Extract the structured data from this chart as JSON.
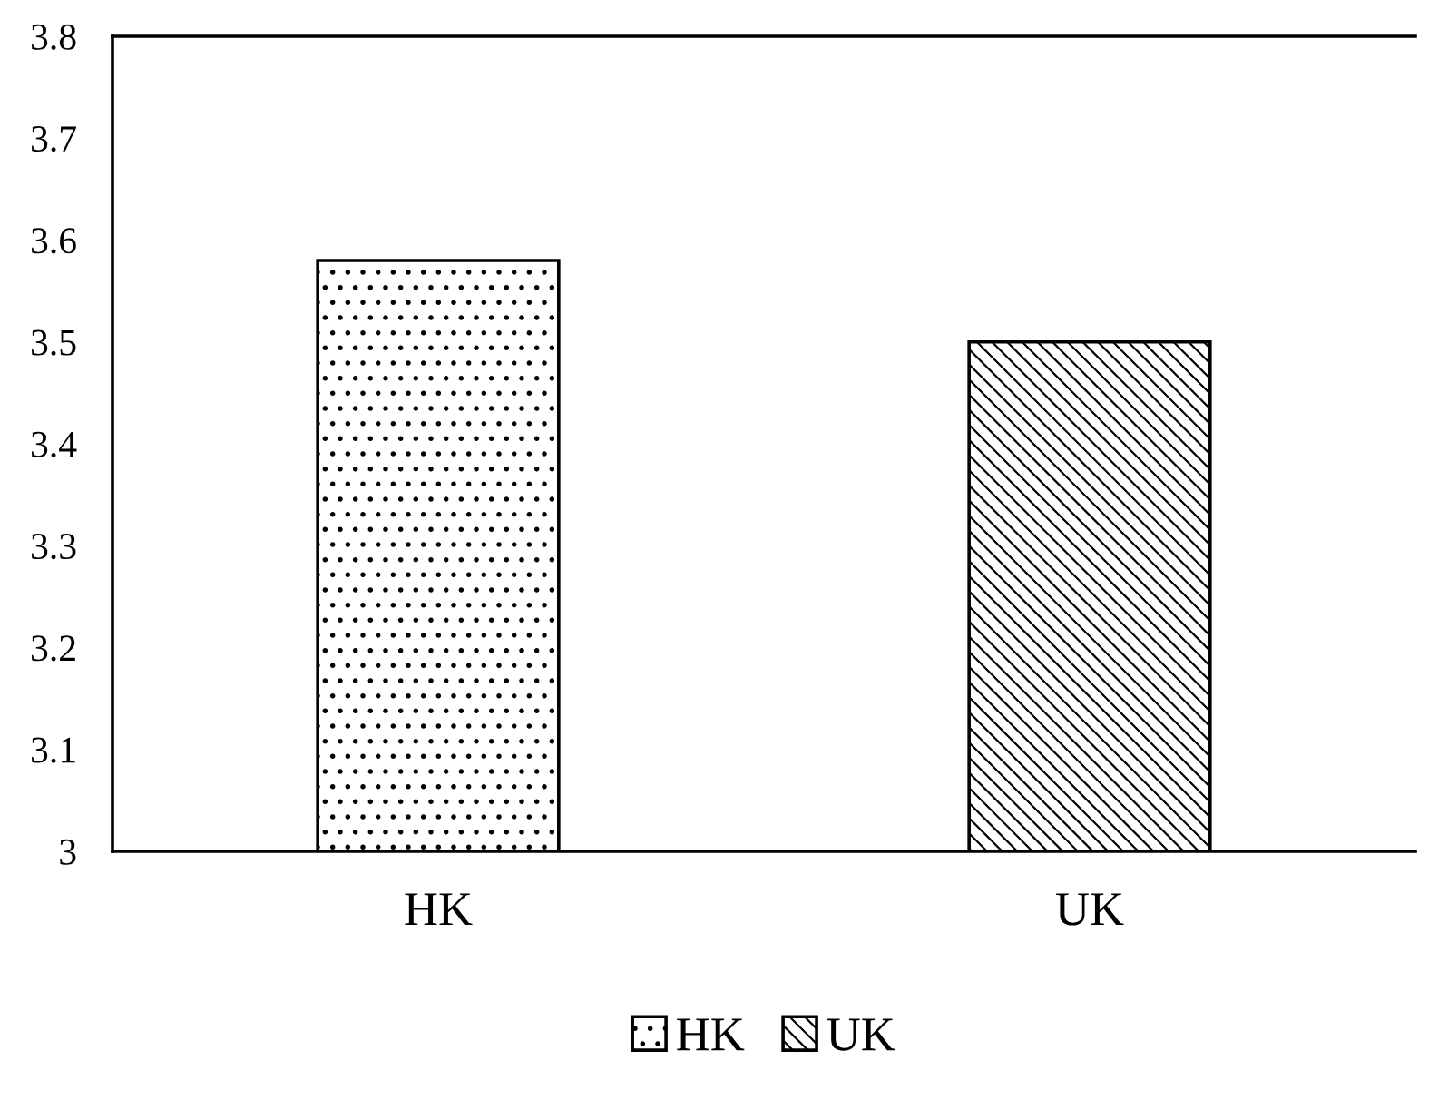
{
  "chart_data": {
    "type": "bar",
    "categories": [
      "HK",
      "UK"
    ],
    "series": [
      {
        "name": "HK",
        "color": "#000000",
        "values": [
          3.58,
          null
        ]
      },
      {
        "name": "UK",
        "color": "#000000",
        "values": [
          null,
          3.5
        ]
      }
    ],
    "ylim": [
      3,
      3.8
    ],
    "yticks": [
      {
        "value": 3,
        "label": "3"
      },
      3.1,
      3.2,
      3.3,
      3.4,
      3.5,
      3.6,
      3.7,
      3.8
    ],
    "grid": false,
    "legend": "bottom"
  }
}
